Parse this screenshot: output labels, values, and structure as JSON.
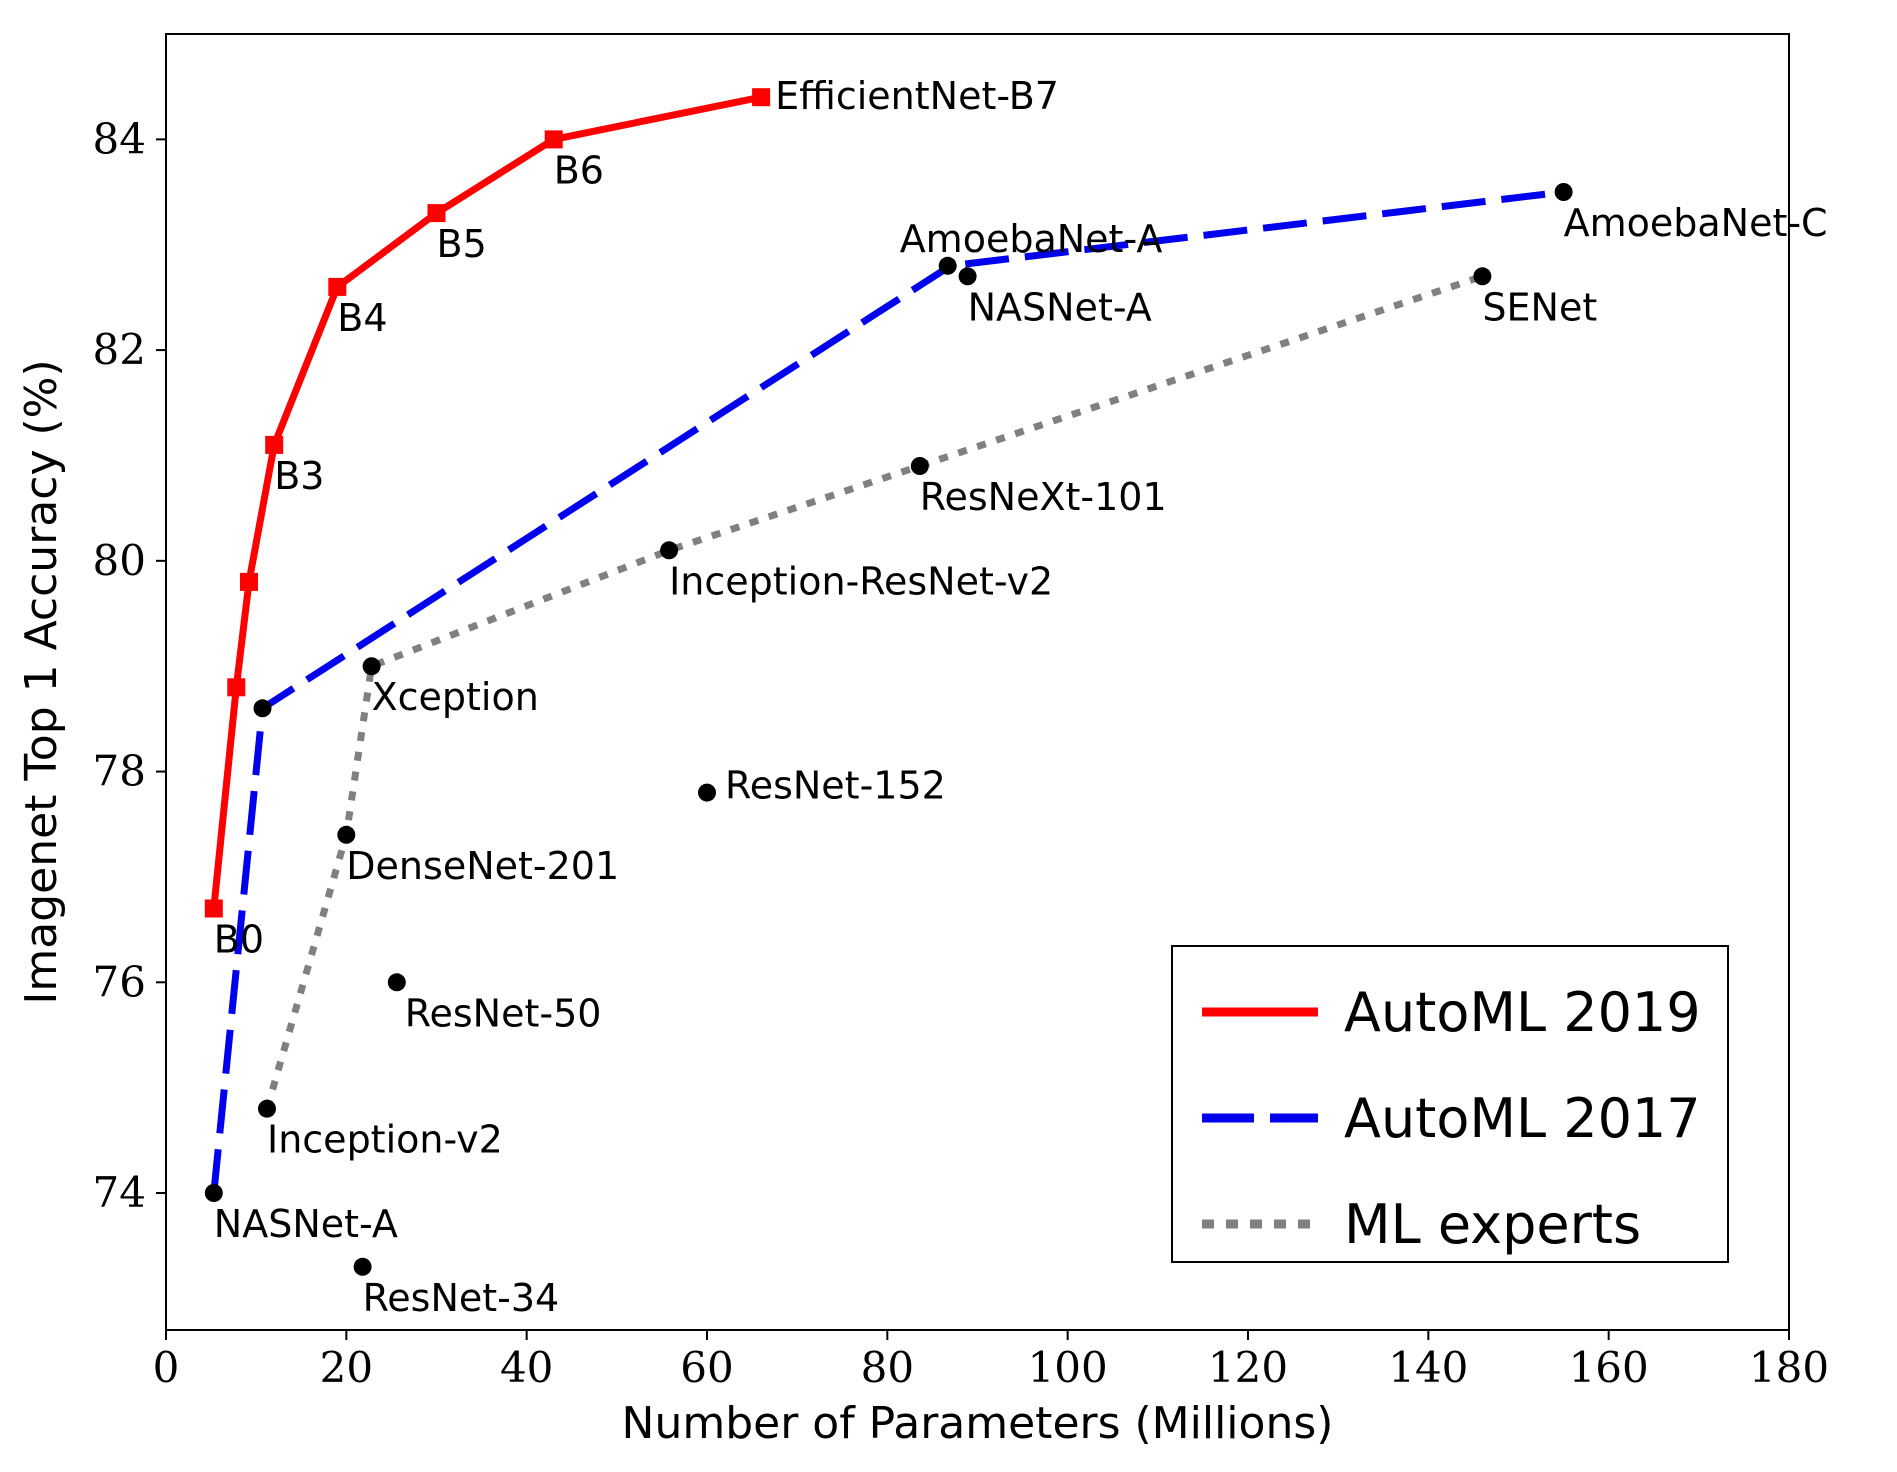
{
  "chart_data": {
    "type": "line",
    "title": "",
    "xlabel": "Number of Parameters (Millions)",
    "ylabel": "Imagenet Top 1 Accuracy (%)",
    "xlim": [
      0,
      180
    ],
    "ylim": [
      72.7,
      85.0
    ],
    "xticks": [
      0,
      20,
      40,
      60,
      80,
      100,
      120,
      140,
      160,
      180
    ],
    "yticks": [
      74,
      76,
      78,
      80,
      82,
      84
    ],
    "grid": false,
    "legend_position": "bottom-right",
    "series": [
      {
        "name": "AutoML 2019",
        "color": "#ff0000",
        "line_style": "solid",
        "marker": "square",
        "points": [
          {
            "x": 5.3,
            "y": 76.7
          },
          {
            "x": 7.8,
            "y": 78.8
          },
          {
            "x": 9.2,
            "y": 79.8
          },
          {
            "x": 12,
            "y": 81.1
          },
          {
            "x": 19,
            "y": 82.6
          },
          {
            "x": 30,
            "y": 83.3
          },
          {
            "x": 43,
            "y": 84.0
          },
          {
            "x": 66,
            "y": 84.4
          }
        ]
      },
      {
        "name": "AutoML 2017",
        "color": "#0000ee",
        "line_style": "dashed",
        "marker": "none",
        "points": [
          {
            "x": 5.3,
            "y": 74.0
          },
          {
            "x": 10.7,
            "y": 78.6
          },
          {
            "x": 87,
            "y": 82.8
          },
          {
            "x": 155,
            "y": 83.5
          }
        ]
      },
      {
        "name": "ML experts",
        "color": "#808080",
        "line_style": "dotted",
        "marker": "none",
        "points": [
          {
            "x": 11.2,
            "y": 74.8
          },
          {
            "x": 20,
            "y": 77.4
          },
          {
            "x": 22.8,
            "y": 79.0
          },
          {
            "x": 55.8,
            "y": 80.1
          },
          {
            "x": 83.6,
            "y": 80.9
          },
          {
            "x": 146,
            "y": 82.7
          }
        ]
      }
    ],
    "points": [
      {
        "label": "NASNet-A",
        "x": 5.3,
        "y": 74.0,
        "dx": 0,
        "dy": 44,
        "anchor": "start"
      },
      {
        "label": "ResNet-34",
        "x": 21.8,
        "y": 73.3,
        "dx": 0,
        "dy": 44,
        "anchor": "start"
      },
      {
        "label": "Inception-v2",
        "x": 11.2,
        "y": 74.8,
        "dx": 0,
        "dy": 44,
        "anchor": "start"
      },
      {
        "label": "ResNet-50",
        "x": 25.6,
        "y": 76.0,
        "dx": 8,
        "dy": 44,
        "anchor": "start"
      },
      {
        "label": "DenseNet-201",
        "x": 20,
        "y": 77.4,
        "dx": 0,
        "dy": 44,
        "anchor": "start"
      },
      {
        "label": "ResNet-152",
        "x": 60,
        "y": 77.8,
        "dx": 18,
        "dy": 6,
        "anchor": "start"
      },
      {
        "label": "Xception",
        "x": 22.8,
        "y": 79.0,
        "dx": 0,
        "dy": 44,
        "anchor": "start"
      },
      {
        "label": "Inception-ResNet-v2",
        "x": 55.8,
        "y": 80.1,
        "dx": 0,
        "dy": 44,
        "anchor": "start"
      },
      {
        "label": "ResNeXt-101",
        "x": 83.6,
        "y": 80.9,
        "dx": 0,
        "dy": 44,
        "anchor": "start"
      },
      {
        "label": "NASNet-A",
        "x": 88.9,
        "y": 82.7,
        "dx": 0,
        "dy": 44,
        "anchor": "start"
      },
      {
        "label": "AmoebaNet-A",
        "x": 86.7,
        "y": 82.8,
        "dx": -48,
        "dy": -14,
        "anchor": "start"
      },
      {
        "label": "SENet",
        "x": 146,
        "y": 82.7,
        "dx": 0,
        "dy": 44,
        "anchor": "start"
      },
      {
        "label": "AmoebaNet-C",
        "x": 155,
        "y": 83.5,
        "dx": 0,
        "dy": 44,
        "anchor": "start"
      },
      {
        "label": "",
        "x": 10.7,
        "y": 78.6,
        "dx": 0,
        "dy": 0,
        "anchor": "start"
      }
    ],
    "efficientnet_labels": [
      {
        "label": "B0",
        "x": 5.3,
        "y": 76.7,
        "dx": 0,
        "dy": 44,
        "anchor": "start"
      },
      {
        "label": "B3",
        "x": 12,
        "y": 81.1,
        "dx": 0,
        "dy": 44,
        "anchor": "start"
      },
      {
        "label": "B4",
        "x": 19,
        "y": 82.6,
        "dx": 0,
        "dy": 44,
        "anchor": "start"
      },
      {
        "label": "B5",
        "x": 30,
        "y": 83.3,
        "dx": 0,
        "dy": 44,
        "anchor": "start"
      },
      {
        "label": "B6",
        "x": 43,
        "y": 84.0,
        "dx": 0,
        "dy": 44,
        "anchor": "start"
      },
      {
        "label": "EfficientNet-B7",
        "x": 66,
        "y": 84.4,
        "dx": 14,
        "dy": 12,
        "anchor": "start"
      }
    ]
  }
}
